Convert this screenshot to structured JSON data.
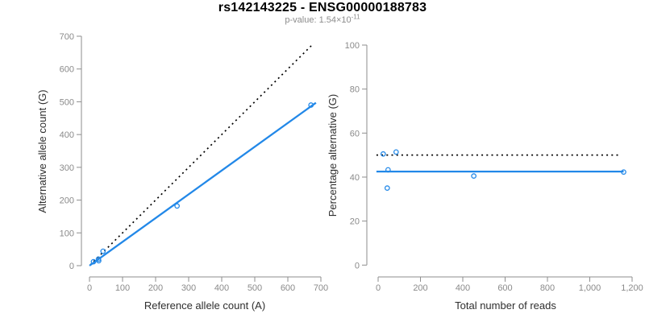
{
  "header": {
    "title": "rs142143225 - ENSG00000188783",
    "subtitle": {
      "text": "p-value: 1.54×10",
      "superscript": "-11"
    }
  },
  "colors": {
    "accent_blue": "#2288e8",
    "axis": "#8e8e8e",
    "tick_label": "#8a8a8a",
    "axis_label": "#2e2e2e",
    "dotted_line": "#000000"
  },
  "chart_data": [
    {
      "type": "scatter",
      "panel": "allele-counts",
      "xlabel": "Reference allele count (A)",
      "ylabel": "Alternative allele count (G)",
      "xlim": [
        0,
        700
      ],
      "ylim": [
        0,
        700
      ],
      "xticks": [
        0,
        100,
        200,
        300,
        400,
        500,
        600,
        700
      ],
      "xtick_labels": [
        "0",
        "100",
        "200",
        "300",
        "400",
        "500",
        "600",
        "700"
      ],
      "yticks": [
        0,
        100,
        200,
        300,
        400,
        500,
        600,
        700
      ],
      "ytick_labels": [
        "0",
        "100",
        "200",
        "300",
        "400",
        "500",
        "600",
        "700"
      ],
      "grid": false,
      "points": [
        [
          12,
          12
        ],
        [
          27,
          20
        ],
        [
          28,
          15
        ],
        [
          41,
          44
        ],
        [
          265,
          182
        ],
        [
          670,
          490
        ]
      ],
      "lines": [
        {
          "name": "identity-line",
          "style": "dotted",
          "color": "#000000",
          "from": [
            2,
            2
          ],
          "to": [
            672,
            672
          ]
        },
        {
          "name": "fit-line",
          "style": "solid",
          "color": "#2288e8",
          "from": [
            0,
            0
          ],
          "to": [
            685,
            497
          ]
        }
      ]
    },
    {
      "type": "scatter",
      "panel": "percentage-vs-reads",
      "xlabel": "Total number of reads",
      "ylabel": "Percentage alternative (G)",
      "xlim": [
        0,
        1200
      ],
      "ylim": [
        0,
        100
      ],
      "xticks": [
        0,
        200,
        400,
        600,
        800,
        1000,
        1200
      ],
      "xtick_labels": [
        "0",
        "200",
        "400",
        "600",
        "800",
        "1,000",
        "1,200"
      ],
      "yticks": [
        0,
        20,
        40,
        60,
        80,
        100
      ],
      "ytick_labels": [
        "0",
        "20",
        "40",
        "60",
        "80",
        "100"
      ],
      "grid": false,
      "points": [
        [
          24,
          50.5
        ],
        [
          43,
          35
        ],
        [
          47,
          43.3
        ],
        [
          85,
          51.4
        ],
        [
          452,
          40.5
        ],
        [
          1160,
          42.3
        ]
      ],
      "lines": [
        {
          "name": "expected-50pct-line",
          "style": "dotted",
          "color": "#000000",
          "from": [
            -8,
            50
          ],
          "to": [
            1140,
            50
          ]
        },
        {
          "name": "fit-line",
          "style": "solid",
          "color": "#2288e8",
          "from": [
            -8,
            42.5
          ],
          "to": [
            1160,
            42.5
          ]
        }
      ]
    }
  ]
}
